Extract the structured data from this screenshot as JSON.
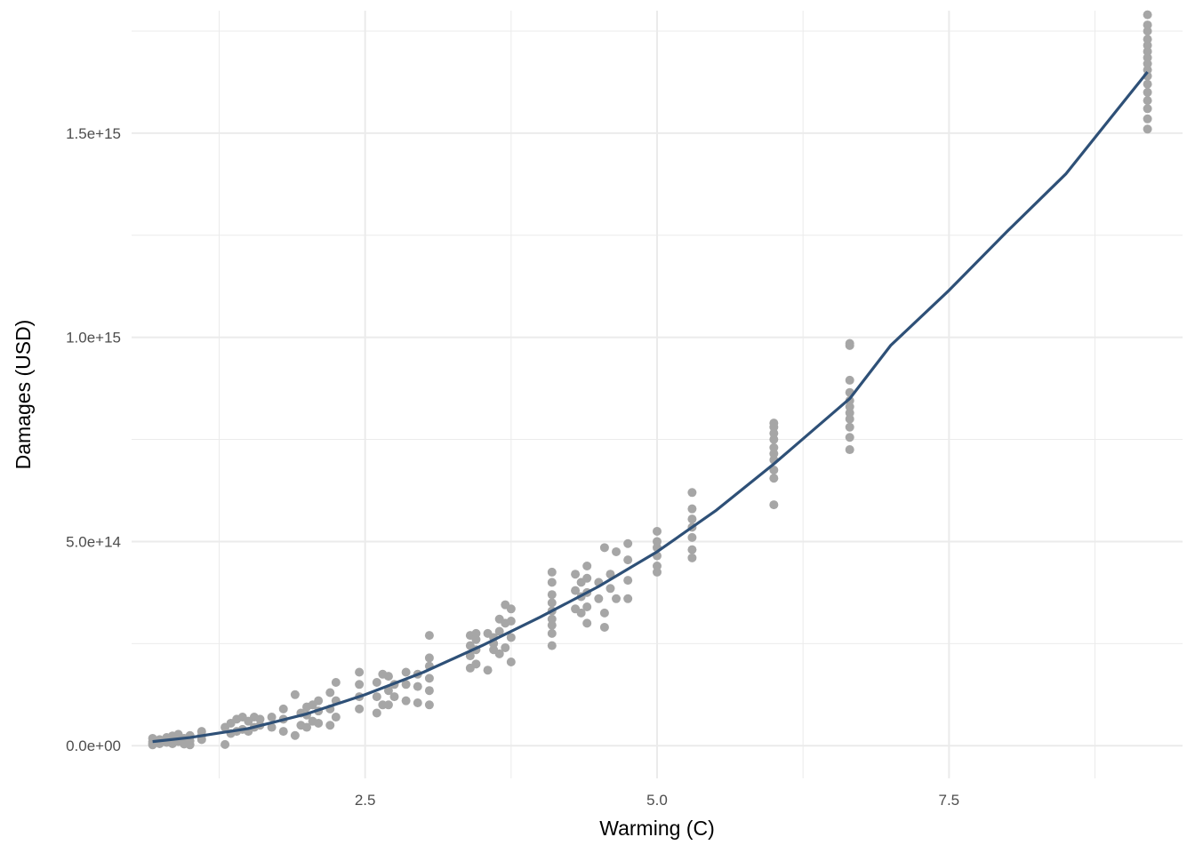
{
  "chart_data": {
    "type": "scatter",
    "title": "",
    "xlabel": "Warming (C)",
    "ylabel": "Damages (USD)",
    "xlim": [
      0.5,
      9.5
    ],
    "ylim": [
      -80000000000000.0,
      1800000000000000.0
    ],
    "x_ticks": [
      {
        "value": 2.5,
        "label": "2.5"
      },
      {
        "value": 5.0,
        "label": "5.0"
      },
      {
        "value": 7.5,
        "label": "7.5"
      }
    ],
    "x_minor_ticks": [
      1.25,
      3.75,
      6.25,
      8.75
    ],
    "y_ticks": [
      {
        "value": 0,
        "label": "0.0e+00"
      },
      {
        "value": 500000000000000.0,
        "label": "5.0e+14"
      },
      {
        "value": 1000000000000000.0,
        "label": "1.0e+15"
      },
      {
        "value": 1500000000000000.0,
        "label": "1.5e+15"
      }
    ],
    "y_minor_ticks": [
      250000000000000.0,
      750000000000000.0,
      1250000000000000.0,
      1750000000000000.0
    ],
    "grid": true,
    "legend": "none",
    "colors": {
      "points": "#a6a6a6",
      "fit_line": "#2e5077",
      "grid": "#ebebeb",
      "tick_text": "#4d4d4d"
    },
    "series": [
      {
        "kind": "points",
        "x": [
          0.68,
          0.68,
          0.68,
          0.68,
          0.74,
          0.74,
          0.8,
          0.8,
          0.85,
          0.85,
          0.85,
          0.9,
          0.9,
          0.95,
          0.95,
          1.0,
          1.0,
          1.0,
          1.1,
          1.1,
          1.1,
          1.3,
          1.3,
          1.35,
          1.35,
          1.4,
          1.4,
          1.45,
          1.45,
          1.5,
          1.5,
          1.55,
          1.55,
          1.6,
          1.6,
          1.7,
          1.7,
          1.8,
          1.8,
          1.8,
          1.9,
          1.9,
          1.95,
          1.95,
          2.0,
          2.0,
          2.0,
          2.05,
          2.05,
          2.1,
          2.1,
          2.1,
          2.2,
          2.2,
          2.2,
          2.25,
          2.25,
          2.25,
          2.45,
          2.45,
          2.45,
          2.45,
          2.6,
          2.6,
          2.6,
          2.65,
          2.65,
          2.7,
          2.7,
          2.7,
          2.75,
          2.75,
          2.85,
          2.85,
          2.85,
          2.95,
          2.95,
          2.95,
          3.05,
          3.05,
          3.05,
          3.05,
          3.05,
          3.05,
          3.4,
          3.4,
          3.4,
          3.4,
          3.45,
          3.45,
          3.45,
          3.45,
          3.55,
          3.55,
          3.6,
          3.6,
          3.6,
          3.65,
          3.65,
          3.65,
          3.7,
          3.7,
          3.7,
          3.75,
          3.75,
          3.75,
          3.75,
          4.1,
          4.1,
          4.1,
          4.1,
          4.1,
          4.1,
          4.1,
          4.1,
          4.1,
          4.3,
          4.3,
          4.3,
          4.35,
          4.35,
          4.35,
          4.4,
          4.4,
          4.4,
          4.4,
          4.4,
          4.5,
          4.5,
          4.55,
          4.55,
          4.55,
          4.6,
          4.6,
          4.65,
          4.65,
          4.75,
          4.75,
          4.75,
          4.75,
          5.0,
          5.0,
          5.0,
          5.0,
          5.0,
          5.0,
          5.3,
          5.3,
          5.3,
          5.3,
          5.3,
          5.3,
          5.3,
          6.0,
          6.0,
          6.0,
          6.0,
          6.0,
          6.0,
          6.0,
          6.0,
          6.0,
          6.0,
          6.65,
          6.65,
          6.65,
          6.65,
          6.65,
          6.65,
          6.65,
          6.65,
          6.65,
          6.65,
          6.65,
          9.2,
          9.2,
          9.2,
          9.2,
          9.2,
          9.2,
          9.2,
          9.2,
          9.2,
          9.2,
          9.2,
          9.2,
          9.2,
          9.2,
          9.2,
          9.2
        ],
        "y": [
          2000000000000.0,
          6000000000000.0,
          10000000000000.0,
          18000000000000.0,
          5000000000000.0,
          15000000000000.0,
          8000000000000.0,
          20000000000000.0,
          5000000000000.0,
          12000000000000.0,
          24000000000000.0,
          10000000000000.0,
          28000000000000.0,
          4000000000000.0,
          18000000000000.0,
          2000000000000.0,
          12000000000000.0,
          25000000000000.0,
          15000000000000.0,
          25000000000000.0,
          35000000000000.0,
          3000000000000.0,
          45000000000000.0,
          30000000000000.0,
          55000000000000.0,
          35000000000000.0,
          65000000000000.0,
          40000000000000.0,
          70000000000000.0,
          35000000000000.0,
          60000000000000.0,
          45000000000000.0,
          70000000000000.0,
          50000000000000.0,
          65000000000000.0,
          45000000000000.0,
          70000000000000.0,
          35000000000000.0,
          65000000000000.0,
          90000000000000.0,
          25000000000000.0,
          125000000000000.0,
          50000000000000.0,
          80000000000000.0,
          45000000000000.0,
          75000000000000.0,
          95000000000000.0,
          60000000000000.0,
          100000000000000.0,
          55000000000000.0,
          85000000000000.0,
          110000000000000.0,
          50000000000000.0,
          90000000000000.0,
          130000000000000.0,
          70000000000000.0,
          110000000000000.0,
          155000000000000.0,
          90000000000000.0,
          120000000000000.0,
          150000000000000.0,
          180000000000000.0,
          80000000000000.0,
          120000000000000.0,
          155000000000000.0,
          100000000000000.0,
          175000000000000.0,
          100000000000000.0,
          135000000000000.0,
          170000000000000.0,
          120000000000000.0,
          150000000000000.0,
          110000000000000.0,
          150000000000000.0,
          180000000000000.0,
          105000000000000.0,
          145000000000000.0,
          175000000000000.0,
          100000000000000.0,
          135000000000000.0,
          165000000000000.0,
          195000000000000.0,
          215000000000000.0,
          270000000000000.0,
          190000000000000.0,
          220000000000000.0,
          245000000000000.0,
          270000000000000.0,
          200000000000000.0,
          235000000000000.0,
          260000000000000.0,
          275000000000000.0,
          185000000000000.0,
          275000000000000.0,
          235000000000000.0,
          250000000000000.0,
          265000000000000.0,
          225000000000000.0,
          280000000000000.0,
          310000000000000.0,
          240000000000000.0,
          300000000000000.0,
          345000000000000.0,
          205000000000000.0,
          265000000000000.0,
          305000000000000.0,
          335000000000000.0,
          245000000000000.0,
          275000000000000.0,
          295000000000000.0,
          310000000000000.0,
          330000000000000.0,
          350000000000000.0,
          370000000000000.0,
          400000000000000.0,
          425000000000000.0,
          335000000000000.0,
          380000000000000.0,
          420000000000000.0,
          325000000000000.0,
          365000000000000.0,
          400000000000000.0,
          300000000000000.0,
          340000000000000.0,
          375000000000000.0,
          410000000000000.0,
          440000000000000.0,
          360000000000000.0,
          400000000000000.0,
          290000000000000.0,
          325000000000000.0,
          485000000000000.0,
          385000000000000.0,
          420000000000000.0,
          360000000000000.0,
          475000000000000.0,
          360000000000000.0,
          405000000000000.0,
          455000000000000.0,
          495000000000000.0,
          425000000000000.0,
          440000000000000.0,
          465000000000000.0,
          485000000000000.0,
          500000000000000.0,
          525000000000000.0,
          460000000000000.0,
          480000000000000.0,
          510000000000000.0,
          535000000000000.0,
          555000000000000.0,
          580000000000000.0,
          620000000000000.0,
          590000000000000.0,
          655000000000000.0,
          675000000000000.0,
          700000000000000.0,
          715000000000000.0,
          730000000000000.0,
          750000000000000.0,
          765000000000000.0,
          780000000000000.0,
          790000000000000.0,
          725000000000000.0,
          755000000000000.0,
          780000000000000.0,
          800000000000000.0,
          815000000000000.0,
          830000000000000.0,
          845000000000000.0,
          865000000000000.0,
          895000000000000.0,
          980000000000000.0,
          985000000000000.0,
          1510000000000000.0,
          1535000000000000.0,
          1560000000000000.0,
          1580000000000000.0,
          1600000000000000.0,
          1620000000000000.0,
          1640000000000000.0,
          1655000000000000.0,
          1670000000000000.0,
          1685000000000000.0,
          1700000000000000.0,
          1715000000000000.0,
          1730000000000000.0,
          1750000000000000.0,
          1765000000000000.0,
          1790000000000000.0
        ]
      },
      {
        "kind": "fit-line",
        "x": [
          0.68,
          1.0,
          1.5,
          2.0,
          2.5,
          3.0,
          3.5,
          4.0,
          4.5,
          5.0,
          5.5,
          6.0,
          6.65,
          7.0,
          7.5,
          8.0,
          8.5,
          9.2
        ],
        "y": [
          10000000000000.0,
          20000000000000.0,
          42000000000000.0,
          78000000000000.0,
          125000000000000.0,
          180000000000000.0,
          245000000000000.0,
          315000000000000.0,
          390000000000000.0,
          475000000000000.0,
          575000000000000.0,
          690000000000000.0,
          850000000000000.0,
          980000000000000.0,
          1115000000000000.0,
          1260000000000000.0,
          1400000000000000.0,
          1650000000000000.0
        ]
      }
    ]
  }
}
